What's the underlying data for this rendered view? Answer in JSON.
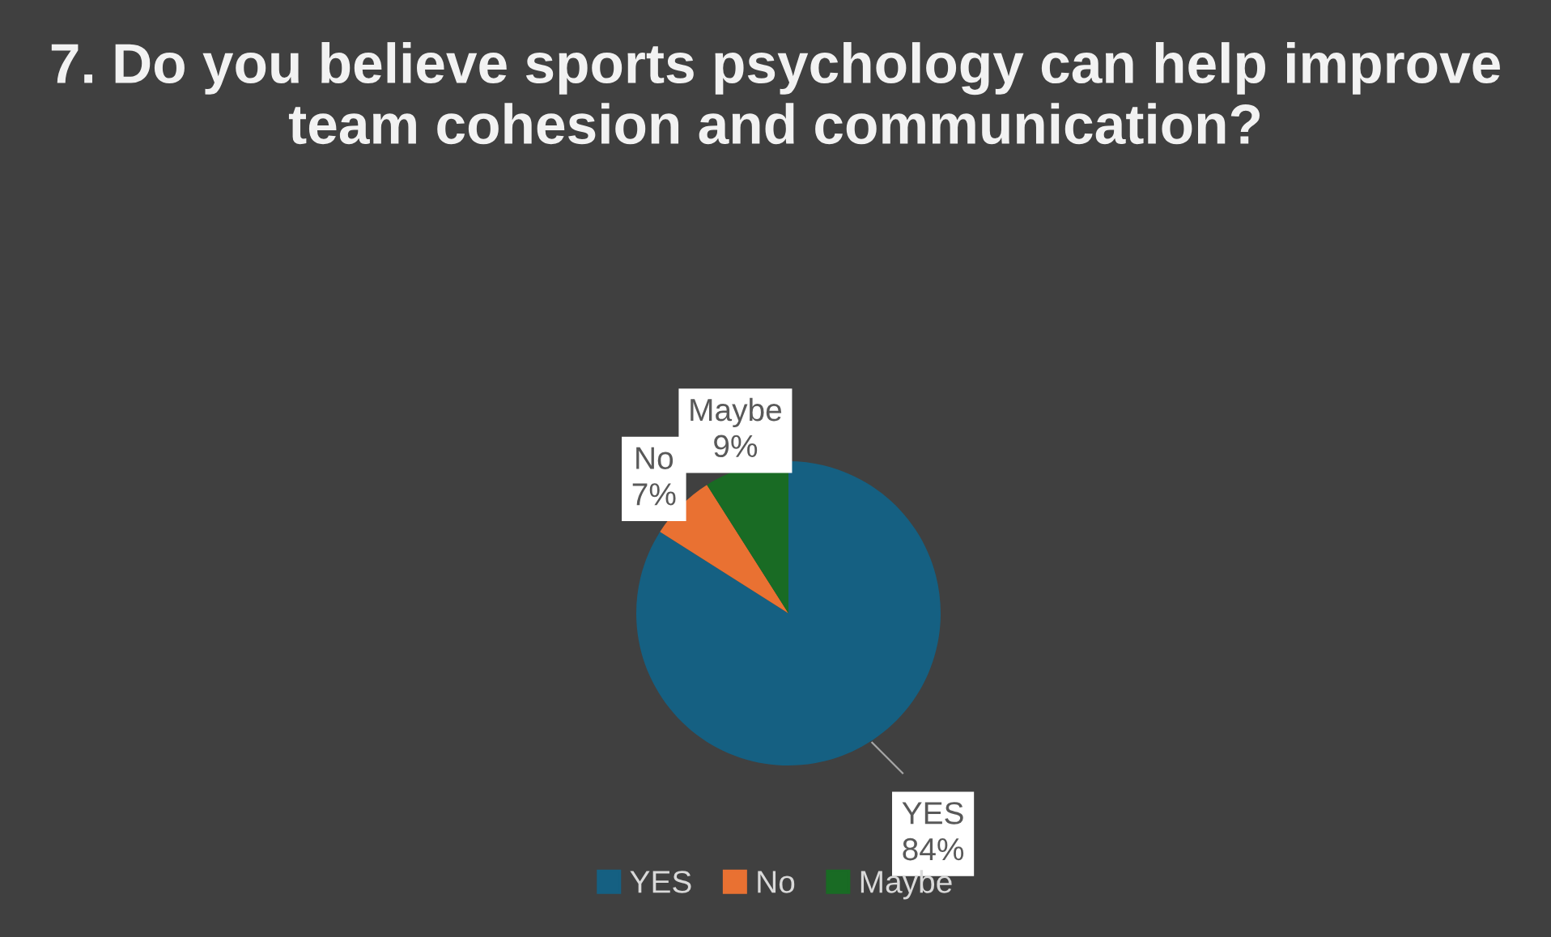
{
  "chart_data": {
    "type": "pie",
    "title": "7. Do you believe sports psychology can help improve team cohesion and communication?",
    "categories": [
      "YES",
      "No",
      "Maybe"
    ],
    "values": [
      84,
      7,
      9
    ],
    "colors": [
      "#156082",
      "#e97132",
      "#196b24"
    ],
    "value_labels": [
      "YES\n84%",
      "No\n7%",
      "Maybe\n9%"
    ],
    "legend": "bottom"
  }
}
